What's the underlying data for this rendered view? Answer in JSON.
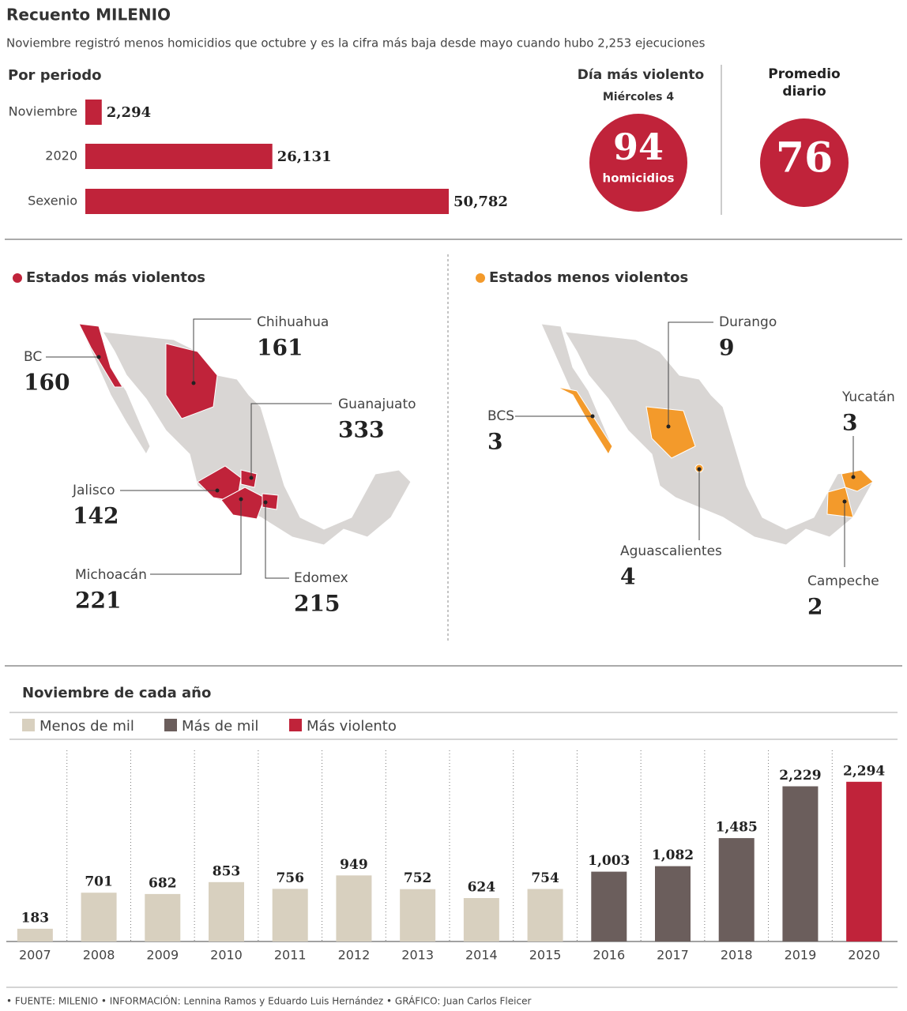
{
  "header": {
    "title": "Recuento MILENIO",
    "subtitle": "Noviembre registró menos homicidios que octubre y es la cifra más baja desde mayo cuando hubo 2,253 ejecuciones"
  },
  "chart_data": [
    {
      "type": "hbar",
      "title": "Por periodo",
      "categories": [
        "Noviembre",
        "2020",
        "Sexenio"
      ],
      "values": [
        2294,
        26131,
        50782
      ],
      "value_labels": [
        "2,294",
        "26,131",
        "50,782"
      ],
      "color": "#c0233a",
      "xlim": [
        0,
        51000
      ]
    },
    {
      "type": "bar",
      "title": "Noviembre de cada año",
      "categories": [
        "2007",
        "2008",
        "2009",
        "2010",
        "2011",
        "2012",
        "2013",
        "2014",
        "2015",
        "2016",
        "2017",
        "2018",
        "2019",
        "2020"
      ],
      "series": [
        {
          "name": "Menos de mil",
          "color": "#d8d0bf",
          "values": [
            183,
            701,
            682,
            853,
            756,
            949,
            752,
            624,
            754,
            null,
            null,
            null,
            null,
            null
          ],
          "value_labels": [
            "183",
            "701",
            "682",
            "853",
            "756",
            "949",
            "752",
            "624",
            "754",
            null,
            null,
            null,
            null,
            null
          ]
        },
        {
          "name": "Más de mil",
          "color": "#6b5e5c",
          "values": [
            null,
            null,
            null,
            null,
            null,
            null,
            null,
            null,
            null,
            1003,
            1082,
            1485,
            2229,
            null
          ],
          "value_labels": [
            null,
            null,
            null,
            null,
            null,
            null,
            null,
            null,
            null,
            "1,003",
            "1,082",
            "1,485",
            "2,229",
            null
          ]
        },
        {
          "name": "Más violento",
          "color": "#c0233a",
          "values": [
            null,
            null,
            null,
            null,
            null,
            null,
            null,
            null,
            null,
            null,
            null,
            null,
            null,
            2294
          ],
          "value_labels": [
            null,
            null,
            null,
            null,
            null,
            null,
            null,
            null,
            null,
            null,
            null,
            null,
            null,
            "2,294"
          ]
        }
      ],
      "ylim": [
        0,
        2700
      ]
    }
  ],
  "stats": [
    {
      "title": "Día más violento",
      "subtitle": "Miércoles 4",
      "value": 94,
      "note": "homicidios"
    },
    {
      "title": "Promedio diario",
      "value": 76
    }
  ],
  "maps": [
    {
      "title": "Estados más violentos",
      "color": "#c0233a",
      "states": [
        {
          "name": "BC",
          "value": 160
        },
        {
          "name": "Chihuahua",
          "value": 161
        },
        {
          "name": "Guanajuato",
          "value": 333
        },
        {
          "name": "Jalisco",
          "value": 142
        },
        {
          "name": "Michoacán",
          "value": 221
        },
        {
          "name": "Edomex",
          "value": 215
        }
      ]
    },
    {
      "title": "Estados menos violentos",
      "color": "#f39a2b",
      "states": [
        {
          "name": "Durango",
          "value": 9
        },
        {
          "name": "BCS",
          "value": 3
        },
        {
          "name": "Yucatán",
          "value": 3
        },
        {
          "name": "Aguascalientes",
          "value": 4
        },
        {
          "name": "Campeche",
          "value": 2
        }
      ]
    }
  ],
  "footer": "• FUENTE: MILENIO • INFORMACIÓN: Lennina Ramos y Eduardo Luis Hernández • GRÁFICO: Juan Carlos Fleicer"
}
